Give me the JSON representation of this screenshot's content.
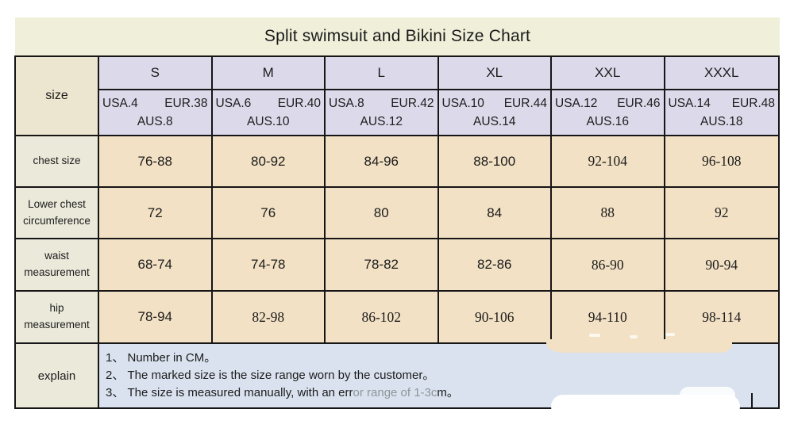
{
  "title": "Split swimsuit and Bikini Size Chart",
  "table": {
    "corner_label": "size",
    "size_headers": [
      "S",
      "M",
      "L",
      "XL",
      "XXL",
      "XXXL"
    ],
    "size_details": [
      {
        "usa": "USA.4",
        "eur": "EUR.38",
        "aus": "AUS.8"
      },
      {
        "usa": "USA.6",
        "eur": "EUR.40",
        "aus": "AUS.10"
      },
      {
        "usa": "USA.8",
        "eur": "EUR.42",
        "aus": "AUS.12"
      },
      {
        "usa": "USA.10",
        "eur": "EUR.44",
        "aus": "AUS.14"
      },
      {
        "usa": "USA.12",
        "eur": "EUR.46",
        "aus": "AUS.16"
      },
      {
        "usa": "USA.14",
        "eur": "EUR.48",
        "aus": "AUS.18"
      }
    ],
    "rows": [
      {
        "label_line1": "chest size",
        "label_line2": "",
        "values": [
          "76-88",
          "80-92",
          "84-96",
          "88-100",
          "92-104",
          "96-108"
        ]
      },
      {
        "label_line1": "Lower chest",
        "label_line2": "circumference",
        "values": [
          "72",
          "76",
          "80",
          "84",
          "88",
          "92"
        ]
      },
      {
        "label_line1": "waist",
        "label_line2": "measurement",
        "values": [
          "68-74",
          "74-78",
          "78-82",
          "82-86",
          "86-90",
          "90-94"
        ]
      },
      {
        "label_line1": "hip",
        "label_line2": "measurement",
        "values": [
          "78-94",
          "82-98",
          "86-102",
          "90-106",
          "94-110",
          "98-114"
        ]
      }
    ],
    "explain": {
      "label": "explain",
      "notes": [
        "1、 Number in CM。",
        "2、 The marked size is the size range worn by the customer。",
        "3、 The size is measured manually, with an error range of 1-3cm。"
      ]
    }
  },
  "colors": {
    "title_bar_bg": "#f0efd9",
    "size_header_bg": "#dcdaea",
    "corner_cell_bg": "#ece5cf",
    "row_label_bg": "#ebe9da",
    "data_cell_bg": "#f2e1c4",
    "explain_cell_bg": "#d9e2ee",
    "border": "#161616",
    "text": "#1c1c1c"
  }
}
